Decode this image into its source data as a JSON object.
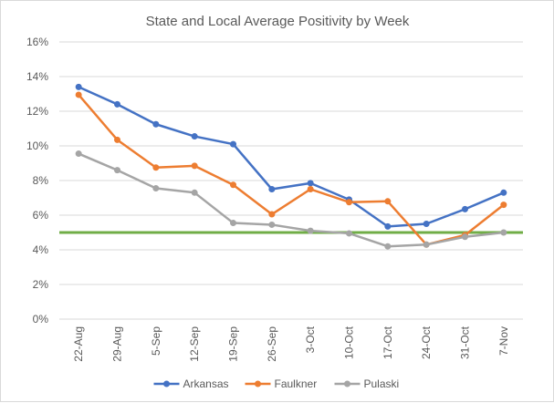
{
  "chart_data": {
    "type": "line",
    "title": "State and Local Average Positivity by Week",
    "xlabel": "",
    "ylabel": "",
    "categories": [
      "22-Aug",
      "29-Aug",
      "5-Sep",
      "12-Sep",
      "19-Sep",
      "26-Sep",
      "3-Oct",
      "10-Oct",
      "17-Oct",
      "24-Oct",
      "31-Oct",
      "7-Nov"
    ],
    "ylim": [
      0,
      16
    ],
    "yticks": [
      0,
      2,
      4,
      6,
      8,
      10,
      12,
      14,
      16
    ],
    "ytick_labels": [
      "0%",
      "2%",
      "4%",
      "6%",
      "8%",
      "10%",
      "12%",
      "14%",
      "16%"
    ],
    "grid": true,
    "legend_position": "bottom",
    "series": [
      {
        "name": "Arkansas",
        "color": "#4472c4",
        "values": [
          13.4,
          12.4,
          11.25,
          10.55,
          10.1,
          7.5,
          7.85,
          6.9,
          5.35,
          5.5,
          6.35,
          7.3
        ]
      },
      {
        "name": "Faulkner",
        "color": "#ed7d31",
        "values": [
          12.95,
          10.35,
          8.75,
          8.85,
          7.75,
          6.05,
          7.5,
          6.75,
          6.8,
          4.3,
          4.85,
          6.6
        ]
      },
      {
        "name": "Pulaski",
        "color": "#a5a5a5",
        "values": [
          9.55,
          8.6,
          7.55,
          7.3,
          5.55,
          5.45,
          5.1,
          4.95,
          4.2,
          4.3,
          4.75,
          5.0
        ]
      }
    ],
    "reference_line": {
      "value": 5,
      "color": "#70ad47"
    }
  }
}
